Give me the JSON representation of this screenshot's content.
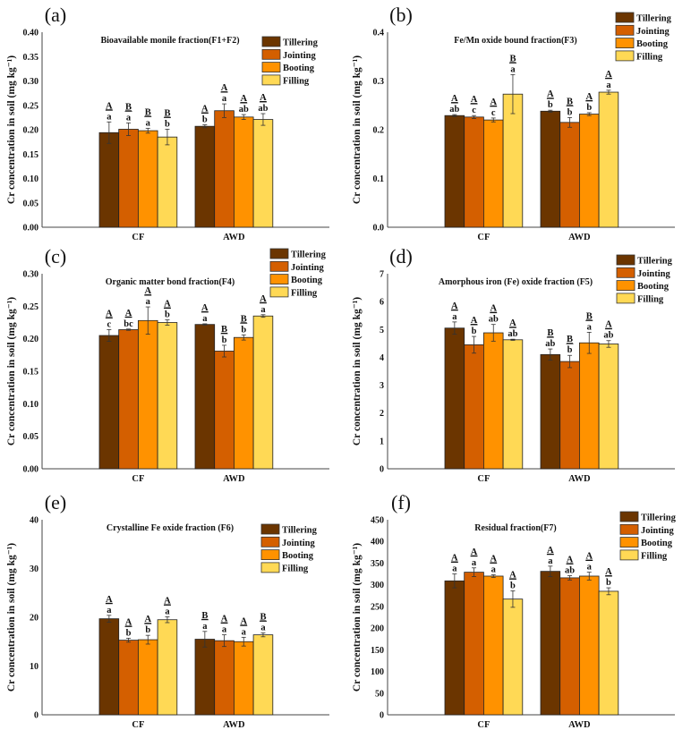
{
  "legend": [
    "Tillering",
    "Jointing",
    "Booting",
    "Filling"
  ],
  "colors": {
    "Tillering": "#6B3500",
    "Jointing": "#D45F00",
    "Booting": "#FF9200",
    "Filling": "#FFD955"
  },
  "chart_data": [
    {
      "type": "bar",
      "panel": "(a)",
      "title": "Bioavailable monile fraction(F1+F2)",
      "ylabel": "Cr concentration in soil (mg kg⁻¹)",
      "categories": [
        "CF",
        "AWD"
      ],
      "ylim": [
        0,
        0.4
      ],
      "yticks": [
        "0.00",
        "0.05",
        "0.10",
        "0.15",
        "0.20",
        "0.25",
        "0.30",
        "0.35",
        "0.40"
      ],
      "legend_placement": "top-right",
      "series": [
        {
          "name": "Tillering",
          "values": [
            0.194,
            0.207
          ],
          "errors": [
            0.022,
            0.003
          ],
          "upper": [
            "A",
            "A"
          ],
          "lower": [
            "a",
            "b"
          ]
        },
        {
          "name": "Jointing",
          "values": [
            0.201,
            0.239
          ],
          "errors": [
            0.013,
            0.014
          ],
          "upper": [
            "B",
            "A"
          ],
          "lower": [
            "a",
            "a"
          ]
        },
        {
          "name": "Booting",
          "values": [
            0.198,
            0.226
          ],
          "errors": [
            0.005,
            0.005
          ],
          "upper": [
            "B",
            "A"
          ],
          "lower": [
            "a",
            "ab"
          ]
        },
        {
          "name": "Filling",
          "values": [
            0.185,
            0.221
          ],
          "errors": [
            0.016,
            0.012
          ],
          "upper": [
            "B",
            "A"
          ],
          "lower": [
            "b",
            "ab"
          ]
        }
      ]
    },
    {
      "type": "bar",
      "panel": "(b)",
      "title": "Fe/Mn oxide bound fraction(F3)",
      "ylabel": "Cr concentration in soil (mg kg⁻¹)",
      "categories": [
        "CF",
        "AWD"
      ],
      "ylim": [
        0,
        0.4
      ],
      "yticks": [
        "0.0",
        "0.1",
        "0.2",
        "0.3",
        "0.4"
      ],
      "legend_placement": "top-right",
      "series": [
        {
          "name": "Tillering",
          "values": [
            0.229,
            0.238
          ],
          "errors": [
            0.002,
            0.002
          ],
          "upper": [
            "A",
            "A"
          ],
          "lower": [
            "ab",
            "b"
          ]
        },
        {
          "name": "Jointing",
          "values": [
            0.226,
            0.215
          ],
          "errors": [
            0.003,
            0.01
          ],
          "upper": [
            "A",
            "B"
          ],
          "lower": [
            "c",
            "b"
          ]
        },
        {
          "name": "Booting",
          "values": [
            0.22,
            0.232
          ],
          "errors": [
            0.004,
            0.003
          ],
          "upper": [
            "A",
            "A"
          ],
          "lower": [
            "c",
            "b"
          ]
        },
        {
          "name": "Filling",
          "values": [
            0.273,
            0.277
          ],
          "errors": [
            0.04,
            0.004
          ],
          "upper": [
            "B",
            "A"
          ],
          "lower": [
            "a",
            "a"
          ]
        }
      ]
    },
    {
      "type": "bar",
      "panel": "(c)",
      "title": "Organic matter bond fraction(F4)",
      "ylabel": "Cr concentration in soil (mg kg⁻¹)",
      "categories": [
        "CF",
        "AWD"
      ],
      "ylim": [
        0,
        0.3
      ],
      "yticks": [
        "0.00",
        "0.05",
        "0.10",
        "0.15",
        "0.20",
        "0.25",
        "0.30"
      ],
      "legend_placement": "top-right",
      "series": [
        {
          "name": "Tillering",
          "values": [
            0.205,
            0.222
          ],
          "errors": [
            0.009,
            0.001
          ],
          "upper": [
            "A",
            "A"
          ],
          "lower": [
            "c",
            "a"
          ]
        },
        {
          "name": "Jointing",
          "values": [
            0.214,
            0.181
          ],
          "errors": [
            0.001,
            0.009
          ],
          "upper": [
            "A",
            "B"
          ],
          "lower": [
            "bc",
            "b"
          ]
        },
        {
          "name": "Booting",
          "values": [
            0.228,
            0.202
          ],
          "errors": [
            0.021,
            0.004
          ],
          "upper": [
            "A",
            "B"
          ],
          "lower": [
            "a",
            "b"
          ]
        },
        {
          "name": "Filling",
          "values": [
            0.225,
            0.235
          ],
          "errors": [
            0.004,
            0.002
          ],
          "upper": [
            "A",
            "A"
          ],
          "lower": [
            "b",
            "a"
          ]
        }
      ]
    },
    {
      "type": "bar",
      "panel": "(d)",
      "title": "Amorphous iron (Fe) oxide fraction (F5)",
      "ylabel": "Cr concentration in soil (mg kg⁻¹)",
      "categories": [
        "CF",
        "AWD"
      ],
      "ylim": [
        0,
        7
      ],
      "yticks": [
        "0",
        "1",
        "2",
        "3",
        "4",
        "5",
        "6",
        "7"
      ],
      "legend_placement": "top-right",
      "series": [
        {
          "name": "Tillering",
          "values": [
            5.05,
            4.1
          ],
          "errors": [
            0.22,
            0.2
          ],
          "upper": [
            "A",
            "B"
          ],
          "lower": [
            "a",
            "ab"
          ]
        },
        {
          "name": "Jointing",
          "values": [
            4.45,
            3.85
          ],
          "errors": [
            0.3,
            0.22
          ],
          "upper": [
            "A",
            "B"
          ],
          "lower": [
            "b",
            "b"
          ]
        },
        {
          "name": "Booting",
          "values": [
            4.88,
            4.52
          ],
          "errors": [
            0.3,
            0.38
          ],
          "upper": [
            "A",
            "B"
          ],
          "lower": [
            "ab",
            "a"
          ]
        },
        {
          "name": "Filling",
          "values": [
            4.63,
            4.48
          ],
          "errors": [
            0.02,
            0.12
          ],
          "upper": [
            "A",
            "A"
          ],
          "lower": [
            "ab",
            "ab"
          ]
        }
      ]
    },
    {
      "type": "bar",
      "panel": "(e)",
      "title": "Crystalline Fe oxide fraction (F6)",
      "ylabel": "Cr concentration in soil (mg kg⁻¹)",
      "categories": [
        "CF",
        "AWD"
      ],
      "ylim": [
        0,
        40
      ],
      "yticks": [
        "0",
        "10",
        "20",
        "30",
        "40"
      ],
      "legend_placement": "top-right",
      "series": [
        {
          "name": "Tillering",
          "values": [
            19.7,
            15.5
          ],
          "errors": [
            0.7,
            1.6
          ],
          "upper": [
            "A",
            "B"
          ],
          "lower": [
            "a",
            "a"
          ]
        },
        {
          "name": "Jointing",
          "values": [
            15.3,
            15.2
          ],
          "errors": [
            0.4,
            1.2
          ],
          "upper": [
            "A",
            "A"
          ],
          "lower": [
            "b",
            "a"
          ]
        },
        {
          "name": "Booting",
          "values": [
            15.4,
            15.0
          ],
          "errors": [
            0.9,
            0.9
          ],
          "upper": [
            "A",
            "A"
          ],
          "lower": [
            "b",
            "a"
          ]
        },
        {
          "name": "Filling",
          "values": [
            19.5,
            16.4
          ],
          "errors": [
            0.6,
            0.4
          ],
          "upper": [
            "A",
            "B"
          ],
          "lower": [
            "a",
            "a"
          ]
        }
      ]
    },
    {
      "type": "bar",
      "panel": "(f)",
      "title": "Residual fraction(F7)",
      "ylabel": "Cr concentration in soil (mg kg⁻¹)",
      "categories": [
        "CF",
        "AWD"
      ],
      "ylim": [
        0,
        450
      ],
      "yticks": [
        "0",
        "50",
        "100",
        "150",
        "200",
        "250",
        "300",
        "350",
        "400",
        "450"
      ],
      "legend_placement": "top-right",
      "series": [
        {
          "name": "Tillering",
          "values": [
            309,
            331
          ],
          "errors": [
            16,
            12
          ],
          "upper": [
            "A",
            "A"
          ],
          "lower": [
            "a",
            "a"
          ]
        },
        {
          "name": "Jointing",
          "values": [
            329,
            316
          ],
          "errors": [
            10,
            5
          ],
          "upper": [
            "A",
            "A"
          ],
          "lower": [
            "a",
            "ab"
          ]
        },
        {
          "name": "Booting",
          "values": [
            320,
            320
          ],
          "errors": [
            3,
            9
          ],
          "upper": [
            "A",
            "A"
          ],
          "lower": [
            "a",
            "a"
          ]
        },
        {
          "name": "Filling",
          "values": [
            267,
            285
          ],
          "errors": [
            19,
            8
          ],
          "upper": [
            "A",
            "A"
          ],
          "lower": [
            "b",
            "b"
          ]
        }
      ]
    }
  ]
}
